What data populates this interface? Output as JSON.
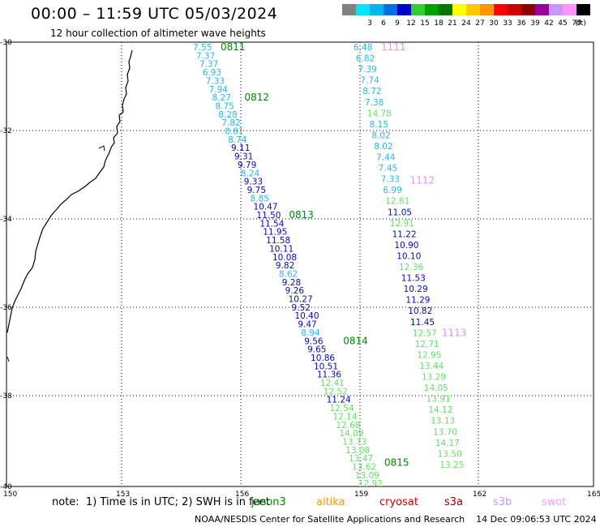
{
  "header": {
    "title": "00:00 – 11:59 UTC 05/03/2024",
    "subtitle": "12 hour collection of altimeter wave heights"
  },
  "colorbar": {
    "unit": "(ft)",
    "bins": [
      {
        "label": "",
        "color": "#808080"
      },
      {
        "label": "3",
        "color": "#00e5ff"
      },
      {
        "label": "6",
        "color": "#00b4ee"
      },
      {
        "label": "9",
        "color": "#0070e0"
      },
      {
        "label": "12",
        "color": "#0000cc"
      },
      {
        "label": "15",
        "color": "#33cc33"
      },
      {
        "label": "18",
        "color": "#00a000"
      },
      {
        "label": "21",
        "color": "#007800"
      },
      {
        "label": "24",
        "color": "#ffff00"
      },
      {
        "label": "27",
        "color": "#ffc800"
      },
      {
        "label": "30",
        "color": "#ff9600"
      },
      {
        "label": "33",
        "color": "#ff0000"
      },
      {
        "label": "36",
        "color": "#cc0000"
      },
      {
        "label": "39",
        "color": "#8b0000"
      },
      {
        "label": "42",
        "color": "#990099"
      },
      {
        "label": "45",
        "color": "#c896ff"
      },
      {
        "label": "70",
        "color": "#ff96ff"
      },
      {
        "label": "",
        "color": "#000000"
      }
    ]
  },
  "map": {
    "lon_ticks": [
      "150",
      "153",
      "156",
      "159",
      "162",
      "165"
    ],
    "lat_ticks": [
      "30",
      "32",
      "34",
      "36",
      "38",
      "40"
    ],
    "lat_prefix": "-",
    "colors": {
      "cyan": "#29b6e6",
      "blue": "#0a0ab4",
      "green": "#66dd66",
      "darkgreen": "#008800",
      "pink": "#f08ee6"
    },
    "tracks": [
      {
        "readings": [
          {
            "v": "7.55",
            "c": "cyan"
          },
          {
            "v": "7.37",
            "c": "cyan"
          },
          {
            "v": "7.37",
            "c": "cyan"
          },
          {
            "v": "6.93",
            "c": "cyan"
          },
          {
            "v": "7.33",
            "c": "cyan"
          },
          {
            "v": "7.94",
            "c": "cyan"
          },
          {
            "v": "8.27",
            "c": "cyan"
          },
          {
            "v": "8.75",
            "c": "cyan"
          },
          {
            "v": "8.28",
            "c": "cyan"
          },
          {
            "v": "7.82",
            "c": "cyan"
          },
          {
            "v": "8.81",
            "c": "cyan"
          },
          {
            "v": "8.74",
            "c": "cyan"
          },
          {
            "v": "9.11",
            "c": "blue"
          },
          {
            "v": "9.31",
            "c": "blue"
          },
          {
            "v": "9.79",
            "c": "blue"
          },
          {
            "v": "8.24",
            "c": "cyan"
          },
          {
            "v": "9.33",
            "c": "blue"
          },
          {
            "v": "9.75",
            "c": "blue"
          },
          {
            "v": "8.85",
            "c": "cyan"
          },
          {
            "v": "10.47",
            "c": "blue"
          },
          {
            "v": "11.50",
            "c": "blue"
          },
          {
            "v": "11.54",
            "c": "blue"
          },
          {
            "v": "11.95",
            "c": "blue"
          },
          {
            "v": "11.58",
            "c": "blue"
          },
          {
            "v": "10.11",
            "c": "blue"
          },
          {
            "v": "10.08",
            "c": "blue"
          },
          {
            "v": "9.82",
            "c": "blue"
          },
          {
            "v": "8.62",
            "c": "cyan"
          },
          {
            "v": "9.28",
            "c": "blue"
          },
          {
            "v": "9.26",
            "c": "blue"
          },
          {
            "v": "10.27",
            "c": "blue"
          },
          {
            "v": "9.52",
            "c": "blue"
          },
          {
            "v": "10.40",
            "c": "blue"
          },
          {
            "v": "9.47",
            "c": "blue"
          },
          {
            "v": "8.94",
            "c": "cyan"
          },
          {
            "v": "9.56",
            "c": "blue"
          },
          {
            "v": "9.65",
            "c": "blue"
          },
          {
            "v": "10.86",
            "c": "blue"
          },
          {
            "v": "10.51",
            "c": "blue"
          },
          {
            "v": "11.36",
            "c": "blue"
          },
          {
            "v": "12.41",
            "c": "green"
          },
          {
            "v": "12.52",
            "c": "green"
          },
          {
            "v": "11.24",
            "c": "blue"
          },
          {
            "v": "12.54",
            "c": "green"
          },
          {
            "v": "12.14",
            "c": "green"
          },
          {
            "v": "12.68",
            "c": "green"
          },
          {
            "v": "14.09",
            "c": "green"
          },
          {
            "v": "13.73",
            "c": "green"
          },
          {
            "v": "13.08",
            "c": "green"
          },
          {
            "v": "13.47",
            "c": "green"
          },
          {
            "v": "13.62",
            "c": "green"
          },
          {
            "v": "13.09",
            "c": "green"
          },
          {
            "v": "12.92",
            "c": "green"
          }
        ],
        "pass_labels": [
          {
            "t": "0811",
            "c": "darkgreen",
            "i": 0
          },
          {
            "t": "0812",
            "c": "darkgreen",
            "i": 6
          },
          {
            "t": "0813",
            "c": "darkgreen",
            "i": 20
          },
          {
            "t": "0814",
            "c": "darkgreen",
            "i": 35
          },
          {
            "t": "0815",
            "c": "darkgreen",
            "i": 50
          }
        ]
      },
      {
        "readings": [
          {
            "v": "6.48",
            "c": "cyan"
          },
          {
            "v": "6.82",
            "c": "cyan"
          },
          {
            "v": "7.39",
            "c": "cyan"
          },
          {
            "v": "7.74",
            "c": "cyan"
          },
          {
            "v": "8.72",
            "c": "cyan"
          },
          {
            "v": "7.38",
            "c": "cyan"
          },
          {
            "v": "14.78",
            "c": "green"
          },
          {
            "v": "8.15",
            "c": "cyan"
          },
          {
            "v": "8.02",
            "c": "cyan"
          },
          {
            "v": "8.02",
            "c": "cyan"
          },
          {
            "v": "7.44",
            "c": "cyan"
          },
          {
            "v": "7.45",
            "c": "cyan"
          },
          {
            "v": "7.33",
            "c": "cyan"
          },
          {
            "v": "6.99",
            "c": "cyan"
          },
          {
            "v": "12.81",
            "c": "green"
          },
          {
            "v": "11.05",
            "c": "blue"
          },
          {
            "v": "12.91",
            "c": "green"
          },
          {
            "v": "11.22",
            "c": "blue"
          },
          {
            "v": "10.90",
            "c": "blue"
          },
          {
            "v": "10.10",
            "c": "blue"
          },
          {
            "v": "12.36",
            "c": "green"
          },
          {
            "v": "11.53",
            "c": "blue"
          },
          {
            "v": "10.29",
            "c": "blue"
          },
          {
            "v": "11.29",
            "c": "blue"
          },
          {
            "v": "10.82",
            "c": "blue"
          },
          {
            "v": "11.45",
            "c": "blue"
          },
          {
            "v": "12.57",
            "c": "green"
          },
          {
            "v": "12.71",
            "c": "green"
          },
          {
            "v": "12.95",
            "c": "green"
          },
          {
            "v": "13.44",
            "c": "green"
          },
          {
            "v": "13.29",
            "c": "green"
          },
          {
            "v": "14.05",
            "c": "green"
          },
          {
            "v": "13.91",
            "c": "green"
          },
          {
            "v": "14.12",
            "c": "green"
          },
          {
            "v": "13.13",
            "c": "green"
          },
          {
            "v": "13.70",
            "c": "green"
          },
          {
            "v": "14.17",
            "c": "green"
          },
          {
            "v": "13.50",
            "c": "green"
          },
          {
            "v": "13.25",
            "c": "green"
          }
        ],
        "pass_labels": [
          {
            "t": "1111",
            "c": "pink",
            "i": 0
          },
          {
            "t": "1112",
            "c": "pink",
            "i": 12
          },
          {
            "t": "1113",
            "c": "pink",
            "i": 26
          }
        ]
      }
    ]
  },
  "footer": {
    "note": "note:  1) Time is in UTC; 2) SWH is in feet",
    "satellites": [
      {
        "name": "jason3",
        "color": "#008800"
      },
      {
        "name": "altika",
        "color": "#ff9900"
      },
      {
        "name": "cryosat",
        "color": "#cc0000"
      },
      {
        "name": "s3a",
        "color": "#8b0000"
      },
      {
        "name": "s3b",
        "color": "#c896ff"
      },
      {
        "name": "swot",
        "color": "#ff96ff"
      }
    ],
    "credits": "NOAA/NESDIS Center for Satellite Applications and Research    14 Dec 09:06:53 UTC 2024"
  }
}
